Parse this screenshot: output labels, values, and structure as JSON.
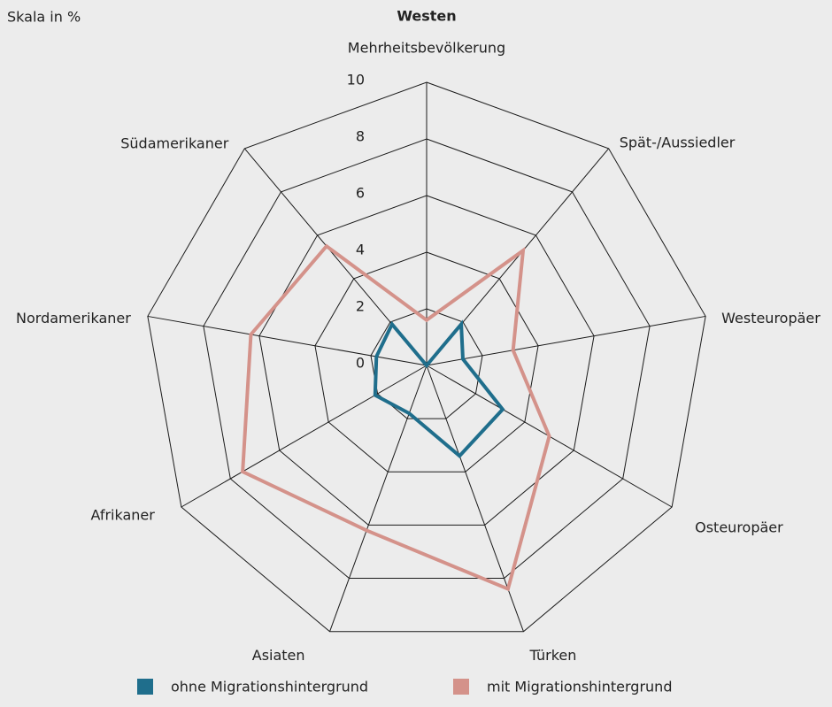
{
  "chart_data": {
    "type": "radar",
    "title": "Westen",
    "scale_label": "Skala in %",
    "categories": [
      "Mehrheitsbevölkerung",
      "Spät-/Aussiedler",
      "Westeuropäer",
      "Osteuropäer",
      "Türken",
      "Asiaten",
      "Afrikaner",
      "Nordamerikaner",
      "Südamerikaner"
    ],
    "series": [
      {
        "name": "ohne Migrationshintergrund",
        "color": "#1f6e8c",
        "values": [
          0,
          1.9,
          1.3,
          3.1,
          3.4,
          1.8,
          2.1,
          1.8,
          1.9
        ]
      },
      {
        "name": "mit Migrationshintergrund",
        "color": "#d4928a",
        "values": [
          1.6,
          5.3,
          3.1,
          5.0,
          8.4,
          6.2,
          7.5,
          6.3,
          5.5
        ]
      }
    ],
    "ylim": [
      0,
      10
    ],
    "yticks": [
      0,
      2,
      4,
      6,
      8,
      10
    ],
    "grid": true
  }
}
